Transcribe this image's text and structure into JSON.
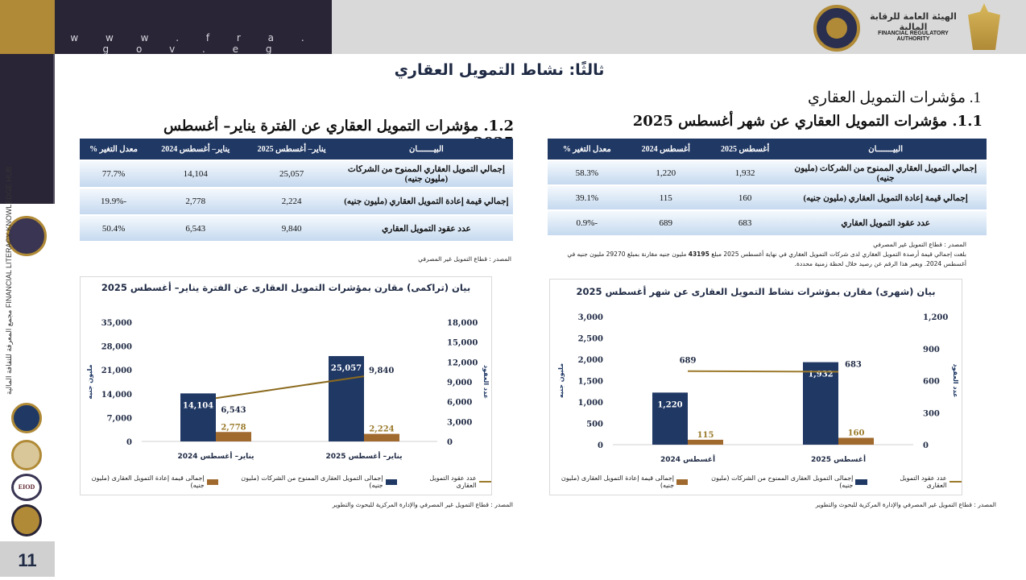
{
  "header": {
    "url": "w w w . f r a . g o v . e g",
    "logo_arabic": "الهيئة العامة للرقابة المالية",
    "logo_english": "FINANCIAL REGULATORY AUTHORITY",
    "seal_text": "ARAB REPUBLIC OF EGYPT"
  },
  "sidebar": {
    "hub_text": "مجمع المعرفة للثقافة المالية FINANCIAL LITERACY KNOWLEDGE HUB",
    "logo_eiod": "EIOD",
    "page_number": "11"
  },
  "page_title": "ثالثًا: نشاط التمويل العقاري",
  "section_title": "1. مؤشرات التمويل العقاري",
  "monthly": {
    "title": "1.1. مؤشرات التمويل العقاري عن شهر أغسطس 2025",
    "columns": [
      "البيـــــــان",
      "أغسطس 2025",
      "أغسطس 2024",
      "معدل التغير %"
    ],
    "rows": [
      [
        "إجمالي التمويل العقاري الممنوح من الشركات (مليون جنيه)",
        "1,932",
        "1,220",
        "58.3%"
      ],
      [
        "إجمالي قيمة إعادة التمويل العقاري (مليون جنيه)",
        "160",
        "115",
        "39.1%"
      ],
      [
        "عدد عقود التمويل العقاري",
        "683",
        "689",
        "-0.9%"
      ]
    ],
    "source": "المصدر : قطاع التمويل غير المصرفي",
    "note_before": "بلغت إجمالي قيمة أرصدة التمويل العقاري لدى شركات التمويل العقاري في نهاية أغسطس 2025 مبلغ ",
    "note_bold": "43195",
    "note_after": " مليون جنيه مقارنة بمبلغ 29270 مليون جنيه في أغسطس 2024. ويعبر هذا الرقم عن رصيد خلال لحظة زمنية محددة."
  },
  "cumulative": {
    "title": "1.2. مؤشرات التمويل العقاري عن الفترة يناير– أغسطس 2025",
    "columns": [
      "البيـــــــان",
      "يناير– أغسطس 2025",
      "يناير– أغسطس 2024",
      "معدل التغير %"
    ],
    "rows": [
      [
        "إجمالي التمويل العقاري الممنوح من الشركات (مليون جنيه)",
        "25,057",
        "14,104",
        "77.7%"
      ],
      [
        "إجمالي قيمة إعادة التمويل العقاري (مليون جنيه)",
        "2,224",
        "2,778",
        "-19.9%"
      ],
      [
        "عدد عقود التمويل العقاري",
        "9,840",
        "6,543",
        "50.4%"
      ]
    ],
    "source": "المصدر : قطاع التمويل غير المصرفي"
  },
  "chart_data": [
    {
      "type": "bar",
      "title": "بيان (شهرى) مقارن بمؤشرات نشاط التمويل العقارى عن شهر أغسطس 2025",
      "categories": [
        "أغسطس 2024",
        "أغسطس 2025"
      ],
      "ylabel": "مليون جنيه",
      "y2label": "عدد العقود",
      "ylim": [
        0,
        3000
      ],
      "yticks": [
        "0",
        "500",
        "1,000",
        "1,500",
        "2,000",
        "2,500",
        "3,000"
      ],
      "y2lim": [
        0,
        1200
      ],
      "y2ticks": [
        "0",
        "300",
        "600",
        "900",
        "1,200"
      ],
      "series": [
        {
          "name": "إجمالى التمويل العقارى الممنوح من الشركات (مليون جنيه)",
          "type": "bar",
          "axis": "left",
          "values": [
            1220,
            1932
          ],
          "labels": [
            "1,220",
            "1,932"
          ],
          "color": "#203864"
        },
        {
          "name": "إجمالى قيمة إعادة التمويل العقارى (مليون جنيه)",
          "type": "bar",
          "axis": "left",
          "values": [
            115,
            160
          ],
          "labels": [
            "115",
            "160"
          ],
          "color": "#a0692e"
        },
        {
          "name": "عدد عقود التمويل العقارى",
          "type": "line",
          "axis": "right",
          "values": [
            689,
            683
          ],
          "labels": [
            "689",
            "683"
          ],
          "color": "#9c7a2c"
        }
      ],
      "legend": "bottom",
      "grid": false,
      "source": "المصدر : قطاع التمويل غير المصرفي والإدارة المركزية للبحوث والتطوير"
    },
    {
      "type": "bar",
      "title": "بيان (تراكمى) مقارن بمؤشرات التمويل العقارى عن الفترة يناير– أغسطس 2025",
      "categories": [
        "يناير– أغسطس 2024",
        "يناير– أغسطس 2025"
      ],
      "ylabel": "مليون جنيه",
      "y2label": "عدد العقود",
      "ylim": [
        0,
        35000
      ],
      "yticks": [
        "0",
        "7,000",
        "14,000",
        "21,000",
        "28,000",
        "35,000"
      ],
      "y2lim": [
        0,
        18000
      ],
      "y2ticks": [
        "0",
        "3,000",
        "6,000",
        "9,000",
        "12,000",
        "15,000",
        "18,000"
      ],
      "series": [
        {
          "name": "إجمالى التمويل العقارى الممنوح من الشركات (مليون جنيه)",
          "type": "bar",
          "axis": "left",
          "values": [
            14104,
            25057
          ],
          "labels": [
            "14,104",
            "25,057"
          ],
          "color": "#203864"
        },
        {
          "name": "إجمالى قيمة إعادة التمويل العقارى (مليون جنيه)",
          "type": "bar",
          "axis": "left",
          "values": [
            2778,
            2224
          ],
          "labels": [
            "2,778",
            "2,224"
          ],
          "color": "#a0692e"
        },
        {
          "name": "عدد عقود التمويل العقارى",
          "type": "line",
          "axis": "right",
          "values": [
            6543,
            9840
          ],
          "labels": [
            "6,543",
            "9,840"
          ],
          "color": "#8b6a1e"
        }
      ],
      "legend": "bottom",
      "grid": false,
      "source": "المصدر : قطاع التمويل غير المصرفي والإدارة المركزية للبحوث والتطوير"
    }
  ]
}
